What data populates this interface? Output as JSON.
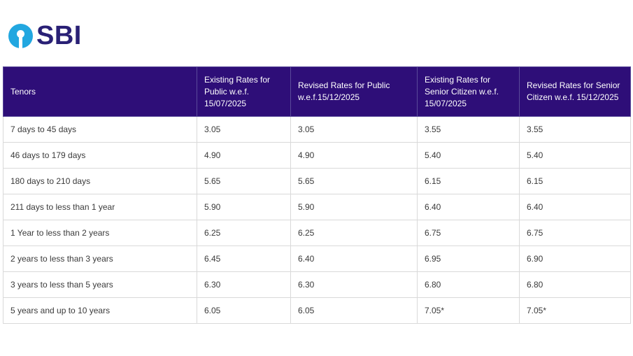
{
  "brand": {
    "name": "SBI",
    "color": "#292075",
    "accent": "#22a7e0"
  },
  "table": {
    "header_color": "#2e0e78",
    "headers": [
      "Tenors",
      "Existing Rates for Public w.e.f. 15/07/2025",
      "Revised Rates for Public w.e.f.15/12/2025",
      "Existing Rates for Senior Citizen w.e.f. 15/07/2025",
      "Revised Rates for Senior Citizen  w.e.f. 15/12/2025"
    ],
    "rows": [
      [
        "7 days to 45 days",
        "3.05",
        "3.05",
        "3.55",
        "3.55"
      ],
      [
        "46 days to 179 days",
        "4.90",
        "4.90",
        "5.40",
        "5.40"
      ],
      [
        "180 days to 210 days",
        "5.65",
        "5.65",
        "6.15",
        "6.15"
      ],
      [
        "211 days to less than 1 year",
        "5.90",
        "5.90",
        "6.40",
        "6.40"
      ],
      [
        "1 Year to less than 2 years",
        "6.25",
        "6.25",
        "6.75",
        "6.75"
      ],
      [
        "2 years to less than 3 years",
        "6.45",
        "6.40",
        "6.95",
        "6.90"
      ],
      [
        "3 years to less than 5 years",
        "6.30",
        "6.30",
        "6.80",
        "6.80"
      ],
      [
        "5 years and up to 10 years",
        "6.05",
        "6.05",
        " 7.05*",
        " 7.05*"
      ]
    ]
  }
}
